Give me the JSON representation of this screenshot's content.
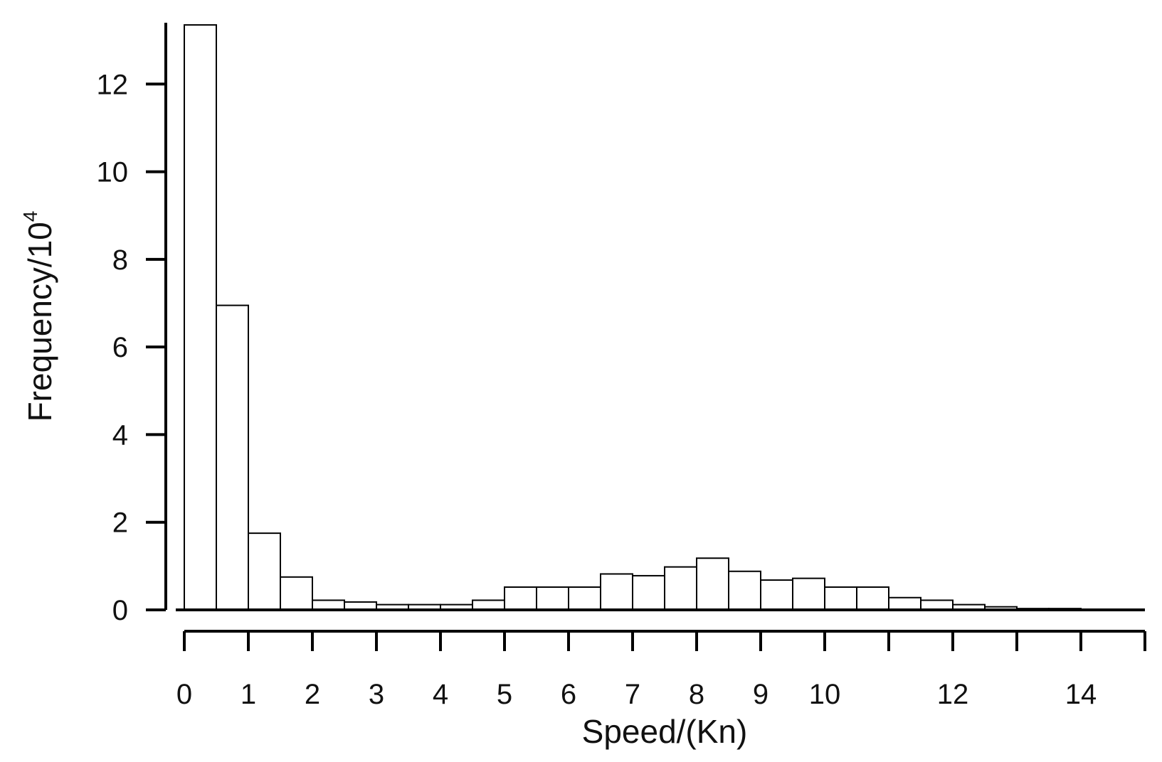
{
  "chart_data": {
    "type": "bar",
    "title": "",
    "xlabel": "Speed/(Kn)",
    "ylabel_base": "Frequency/10",
    "ylabel_exponent": "4",
    "xlim": [
      0,
      15
    ],
    "ylim": [
      0,
      13.4
    ],
    "bin_width": 0.5,
    "bins_start": [
      0,
      0.5,
      1,
      1.5,
      2,
      2.5,
      3,
      3.5,
      4,
      4.5,
      5,
      5.5,
      6,
      6.5,
      7,
      7.5,
      8,
      8.5,
      9,
      9.5,
      10,
      10.5,
      11,
      11.5,
      12,
      12.5,
      13,
      13.5,
      14,
      14.5
    ],
    "values": [
      13.35,
      6.95,
      1.75,
      0.75,
      0.22,
      0.18,
      0.12,
      0.12,
      0.12,
      0.22,
      0.52,
      0.52,
      0.52,
      0.82,
      0.78,
      0.98,
      1.18,
      0.88,
      0.68,
      0.72,
      0.52,
      0.52,
      0.28,
      0.22,
      0.12,
      0.07,
      0.03,
      0.03,
      0.0,
      0.0
    ],
    "x_ticks": [
      0,
      1,
      2,
      3,
      4,
      5,
      6,
      7,
      8,
      9,
      10,
      11,
      12,
      13,
      14,
      15
    ],
    "x_tick_labels": [
      "0",
      "1",
      "2",
      "3",
      "4",
      "5",
      "6",
      "7",
      "8",
      "9",
      "10",
      "12",
      "14"
    ],
    "x_tick_label_values": [
      0,
      1,
      2,
      3,
      4,
      5,
      6,
      7,
      8,
      9,
      10,
      12,
      14
    ],
    "y_ticks": [
      0,
      2,
      4,
      6,
      8,
      10,
      12
    ],
    "y_tick_labels": [
      "0",
      "2",
      "4",
      "6",
      "8",
      "10",
      "12"
    ],
    "grid": false,
    "legend": "none",
    "bar_fill": "#ffffff",
    "bar_stroke": "#000000"
  }
}
